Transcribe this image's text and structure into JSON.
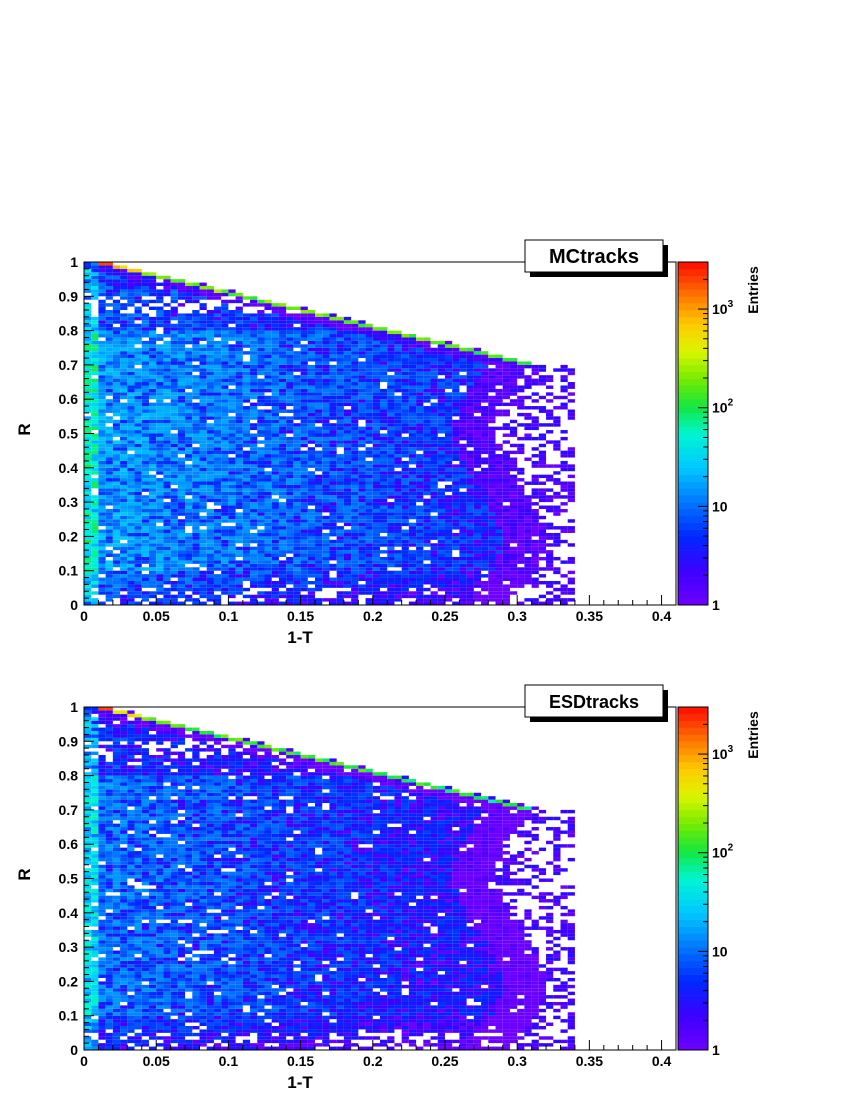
{
  "chart_data": [
    {
      "type": "heatmap",
      "title": "MCtracks",
      "xlabel": "1-T",
      "ylabel": "R",
      "zlabel": "Entries",
      "xlim": [
        0,
        0.41
      ],
      "ylim": [
        0,
        1
      ],
      "x_ticks": [
        "0",
        "0.05",
        "0.1",
        "0.15",
        "0.2",
        "0.25",
        "0.3",
        "0.35",
        "0.4"
      ],
      "y_ticks": [
        "0",
        "0.1",
        "0.2",
        "0.3",
        "0.4",
        "0.5",
        "0.6",
        "0.7",
        "0.8",
        "0.9",
        "1"
      ],
      "z_scale": "log",
      "zlim": [
        1,
        3000
      ],
      "z_ticks": [
        {
          "base": "1",
          "exp": ""
        },
        {
          "base": "10",
          "exp": ""
        },
        {
          "base": "10",
          "exp": "2"
        },
        {
          "base": "10",
          "exp": "3"
        }
      ],
      "bin_width_x": 0.005,
      "bin_width_y": 0.01,
      "x_edge_at_R1": 0.009,
      "x_edge_at_R07": 0.31,
      "x_max_tail": 0.34,
      "peak_density": 18,
      "edge_density": 120,
      "corner_density": 2000
    },
    {
      "type": "heatmap",
      "title": "ESDtracks",
      "xlabel": "1-T",
      "ylabel": "R",
      "zlabel": "Entries",
      "xlim": [
        0,
        0.41
      ],
      "ylim": [
        0,
        1
      ],
      "x_ticks": [
        "0",
        "0.05",
        "0.1",
        "0.15",
        "0.2",
        "0.25",
        "0.3",
        "0.35",
        "0.4"
      ],
      "y_ticks": [
        "0",
        "0.1",
        "0.2",
        "0.3",
        "0.4",
        "0.5",
        "0.6",
        "0.7",
        "0.8",
        "0.9",
        "1"
      ],
      "z_scale": "log",
      "zlim": [
        1,
        3000
      ],
      "z_ticks": [
        {
          "base": "1",
          "exp": ""
        },
        {
          "base": "10",
          "exp": ""
        },
        {
          "base": "10",
          "exp": "2"
        },
        {
          "base": "10",
          "exp": "3"
        }
      ],
      "bin_width_x": 0.005,
      "bin_width_y": 0.01,
      "x_edge_at_R1": 0.009,
      "x_edge_at_R07": 0.31,
      "x_max_tail": 0.34,
      "peak_density": 12,
      "edge_density": 90,
      "corner_density": 2000
    }
  ]
}
